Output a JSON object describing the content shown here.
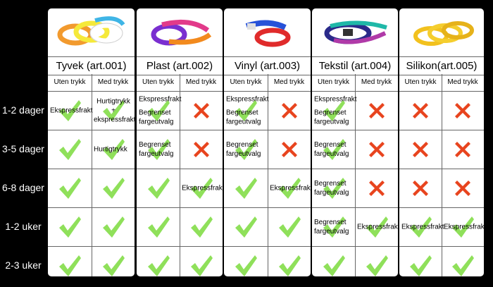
{
  "rows": [
    "1-2 dager",
    "3-5 dager",
    "6-8 dager",
    "1-2 uker",
    "2-3 uker"
  ],
  "subheaders": {
    "left": "Uten trykk",
    "right": "Med trykk"
  },
  "products": [
    {
      "title": "Tyvek (art.001)",
      "image": "tyvek-wristband-image",
      "cells": [
        [
          {
            "mark": "check",
            "notes": [
              "Ekspressfrakt"
            ]
          },
          {
            "mark": "check",
            "notes": [
              "Hurtigtrykk +",
              "ekspressfrakt"
            ]
          }
        ],
        [
          {
            "mark": "check",
            "notes": []
          },
          {
            "mark": "check",
            "notes": [
              "Hurtigtrykk"
            ]
          }
        ],
        [
          {
            "mark": "check",
            "notes": []
          },
          {
            "mark": "check",
            "notes": []
          }
        ],
        [
          {
            "mark": "check",
            "notes": []
          },
          {
            "mark": "check",
            "notes": []
          }
        ],
        [
          {
            "mark": "check",
            "notes": []
          },
          {
            "mark": "check",
            "notes": []
          }
        ]
      ]
    },
    {
      "title": "Plast (art.002)",
      "image": "plastic-wristband-image",
      "cells": [
        [
          {
            "mark": "check",
            "notes": [
              "Ekspressfrakt",
              "Begrenset",
              "fargeutvalg"
            ]
          },
          {
            "mark": "cross",
            "notes": []
          }
        ],
        [
          {
            "mark": "check",
            "notes": [
              "Begrenset",
              "fargeutvalg"
            ]
          },
          {
            "mark": "cross",
            "notes": []
          }
        ],
        [
          {
            "mark": "check",
            "notes": []
          },
          {
            "mark": "check",
            "notes": [
              "Ekspressfrakt"
            ]
          }
        ],
        [
          {
            "mark": "check",
            "notes": []
          },
          {
            "mark": "check",
            "notes": []
          }
        ],
        [
          {
            "mark": "check",
            "notes": []
          },
          {
            "mark": "check",
            "notes": []
          }
        ]
      ]
    },
    {
      "title": "Vinyl (art.003)",
      "image": "vinyl-wristband-image",
      "cells": [
        [
          {
            "mark": "check",
            "notes": [
              "Ekspressfrakt",
              "Begrenset",
              "fargeutvalg"
            ]
          },
          {
            "mark": "cross",
            "notes": []
          }
        ],
        [
          {
            "mark": "check",
            "notes": [
              "Begrenset",
              "fargeutvalg"
            ]
          },
          {
            "mark": "cross",
            "notes": []
          }
        ],
        [
          {
            "mark": "check",
            "notes": []
          },
          {
            "mark": "check",
            "notes": [
              "Ekspressfrakt"
            ]
          }
        ],
        [
          {
            "mark": "check",
            "notes": []
          },
          {
            "mark": "check",
            "notes": []
          }
        ],
        [
          {
            "mark": "check",
            "notes": []
          },
          {
            "mark": "check",
            "notes": []
          }
        ]
      ]
    },
    {
      "title": "Tekstil (art.004)",
      "image": "textile-wristband-image",
      "cells": [
        [
          {
            "mark": "check",
            "notes": [
              "Ekspressfrakt",
              "Begrenset",
              "fargeutvalg"
            ]
          },
          {
            "mark": "cross",
            "notes": []
          }
        ],
        [
          {
            "mark": "check",
            "notes": [
              "Begrenset",
              "fargeutvalg"
            ]
          },
          {
            "mark": "cross",
            "notes": []
          }
        ],
        [
          {
            "mark": "check",
            "notes": [
              "Begrenset",
              "fargeutvalg"
            ]
          },
          {
            "mark": "cross",
            "notes": []
          }
        ],
        [
          {
            "mark": "check",
            "notes": [
              "Begrenset",
              "fargeutvalg"
            ]
          },
          {
            "mark": "check",
            "notes": [
              "Ekspressfrakt"
            ]
          }
        ],
        [
          {
            "mark": "check",
            "notes": []
          },
          {
            "mark": "check",
            "notes": []
          }
        ]
      ]
    },
    {
      "title": "Silikon(art.005)",
      "image": "silicone-wristband-image",
      "cells": [
        [
          {
            "mark": "cross",
            "notes": []
          },
          {
            "mark": "cross",
            "notes": []
          }
        ],
        [
          {
            "mark": "cross",
            "notes": []
          },
          {
            "mark": "cross",
            "notes": []
          }
        ],
        [
          {
            "mark": "cross",
            "notes": []
          },
          {
            "mark": "cross",
            "notes": []
          }
        ],
        [
          {
            "mark": "check",
            "notes": [
              "Ekspressfrakt"
            ]
          },
          {
            "mark": "check",
            "notes": [
              "Ekspressfrakt"
            ]
          }
        ],
        [
          {
            "mark": "check",
            "notes": []
          },
          {
            "mark": "check",
            "notes": []
          }
        ]
      ]
    }
  ],
  "colors": {
    "check": "#8fe05a",
    "cross": "#e8441e",
    "background": "#000000",
    "panel": "#ffffff"
  }
}
